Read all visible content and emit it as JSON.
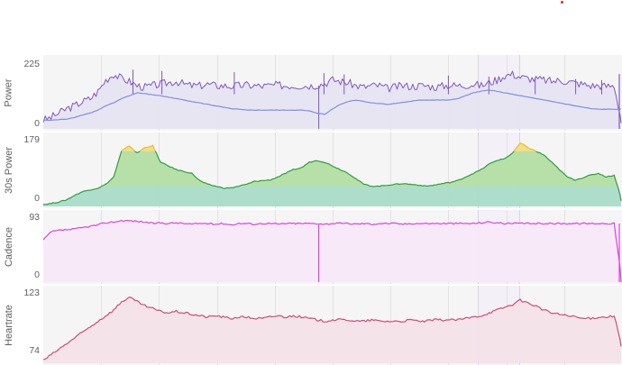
{
  "chart_data": [
    {
      "type": "line",
      "ylabel": "Power",
      "ylim": [
        0,
        225
      ],
      "ticks": [
        "225",
        "0"
      ],
      "series": [
        {
          "values": [
            30,
            40,
            55,
            70,
            80,
            95,
            105,
            130,
            170,
            190,
            175,
            165,
            150,
            145,
            150,
            155,
            160,
            165,
            155,
            150,
            150,
            155,
            150,
            150,
            148,
            150,
            152,
            150,
            148,
            150,
            152,
            150,
            150,
            150,
            150,
            152,
            158,
            170,
            165,
            160,
            150,
            145,
            150,
            150,
            140,
            145,
            150,
            148,
            150,
            150,
            145,
            148,
            152,
            150,
            152,
            155,
            150,
            160,
            170,
            185,
            190,
            180,
            175,
            172,
            170,
            165,
            168,
            165,
            160,
            155,
            150,
            150,
            148,
            150,
            20
          ],
          "color": "#7e57c2"
        },
        {
          "values": [
            30,
            30,
            32,
            34,
            40,
            48,
            55,
            65,
            80,
            90,
            105,
            115,
            125,
            122,
            118,
            115,
            110,
            105,
            100,
            95,
            90,
            85,
            80,
            75,
            70,
            68,
            65,
            65,
            65,
            65,
            65,
            65,
            65,
            65,
            62,
            55,
            50,
            70,
            85,
            95,
            100,
            95,
            90,
            88,
            85,
            88,
            92,
            95,
            100,
            100,
            100,
            100,
            100,
            105,
            115,
            125,
            130,
            135,
            130,
            125,
            120,
            115,
            110,
            105,
            100,
            95,
            90,
            85,
            80,
            75,
            70,
            68,
            68,
            68,
            68
          ],
          "color": "#7c8fe6"
        }
      ]
    },
    {
      "type": "area",
      "ylabel": "30s Power",
      "ylim": [
        0,
        179
      ],
      "ticks": [
        "179",
        "0"
      ],
      "series": [
        {
          "values": [
            5,
            8,
            12,
            18,
            30,
            40,
            45,
            50,
            60,
            80,
            150,
            165,
            145,
            160,
            165,
            120,
            110,
            100,
            95,
            90,
            70,
            60,
            55,
            50,
            50,
            55,
            60,
            68,
            70,
            72,
            80,
            90,
            100,
            105,
            120,
            125,
            120,
            110,
            100,
            90,
            75,
            60,
            55,
            55,
            58,
            60,
            62,
            60,
            58,
            55,
            58,
            62,
            65,
            70,
            80,
            90,
            100,
            115,
            125,
            130,
            145,
            172,
            160,
            150,
            140,
            120,
            100,
            80,
            72,
            78,
            85,
            90,
            80,
            85,
            15
          ],
          "color": "#2e9e3e"
        }
      ]
    },
    {
      "type": "area",
      "ylabel": "Cadence",
      "ylim": [
        0,
        93
      ],
      "ticks": [
        "93",
        "0"
      ],
      "series": [
        {
          "values": [
            60,
            72,
            74,
            75,
            76,
            78,
            80,
            82,
            85,
            86,
            88,
            88,
            87,
            86,
            84,
            85,
            84,
            85,
            84,
            83,
            84,
            84,
            83,
            84,
            82,
            84,
            84,
            83,
            84,
            84,
            83,
            84,
            84,
            84,
            84,
            84,
            83,
            84,
            84,
            84,
            83,
            84,
            83,
            84,
            84,
            84,
            83,
            84,
            84,
            84,
            84,
            84,
            84,
            84,
            84,
            84,
            85,
            86,
            85,
            84,
            84,
            84,
            84,
            84,
            84,
            84,
            84,
            84,
            84,
            84,
            84,
            84,
            84,
            84,
            0
          ],
          "color": "#e040e0"
        }
      ]
    },
    {
      "type": "area",
      "ylabel": "Heartrate",
      "ylim": [
        74,
        123
      ],
      "ticks": [
        "123",
        "74"
      ],
      "series": [
        {
          "values": [
            76,
            80,
            84,
            88,
            92,
            96,
            100,
            104,
            108,
            112,
            118,
            121,
            118,
            115,
            113,
            111,
            110,
            111,
            110,
            109,
            108,
            107,
            108,
            107,
            106,
            107,
            107,
            106,
            106,
            107,
            108,
            107,
            108,
            107,
            106,
            105,
            104,
            105,
            105,
            105,
            104,
            104,
            105,
            104,
            104,
            104,
            104,
            105,
            104,
            104,
            105,
            105,
            105,
            105,
            106,
            107,
            108,
            110,
            112,
            114,
            116,
            119,
            117,
            115,
            112,
            110,
            109,
            108,
            107,
            106,
            106,
            107,
            107,
            108,
            86
          ],
          "color": "#d04a7a"
        }
      ]
    }
  ],
  "theme": {
    "grid": "#e2e2e2",
    "highlight": "#f2ecfa",
    "text": "#5f5f5f",
    "power_fill": "#e6e4f1",
    "p30_fill": "#a9dcc8",
    "p30_over_fill": "#b6e0a8",
    "p30_peak_fill": "#f3de82",
    "p30_peak_line": "#e6c23a",
    "cadence_fill": "#f7e8f7",
    "hr_fill": "#f3e2e8"
  }
}
